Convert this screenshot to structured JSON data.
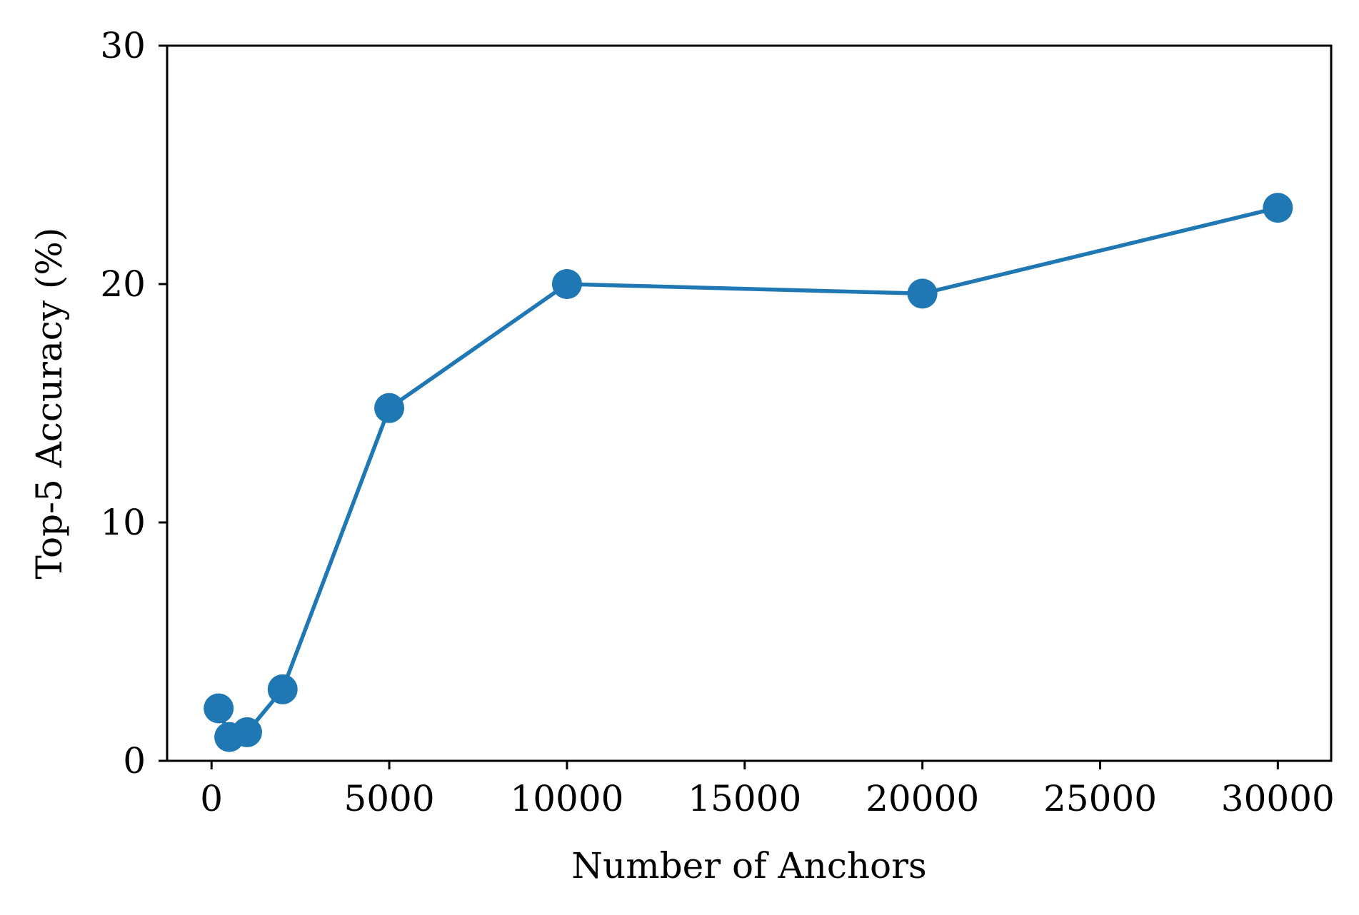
{
  "chart_data": {
    "type": "line",
    "title": "",
    "xlabel": "Number of Anchors",
    "ylabel": "Top-5 Accuracy (%)",
    "xlim": [
      -1250,
      31500
    ],
    "ylim": [
      0,
      30
    ],
    "xticks": [
      0,
      5000,
      10000,
      15000,
      20000,
      25000,
      30000
    ],
    "xtick_labels": [
      "0",
      "5000",
      "10000",
      "15000",
      "20000",
      "25000",
      "30000"
    ],
    "yticks": [
      0,
      10,
      20,
      30
    ],
    "ytick_labels": [
      "0",
      "10",
      "20",
      "30"
    ],
    "grid": false,
    "legend": "none",
    "series": [
      {
        "color": "#1f77b4",
        "marker": "circle",
        "x": [
          200,
          500,
          1000,
          2000,
          5000,
          10000,
          20000,
          30000
        ],
        "y": [
          2.2,
          1.0,
          1.2,
          3.0,
          14.8,
          20.0,
          19.6,
          23.2
        ]
      }
    ]
  }
}
